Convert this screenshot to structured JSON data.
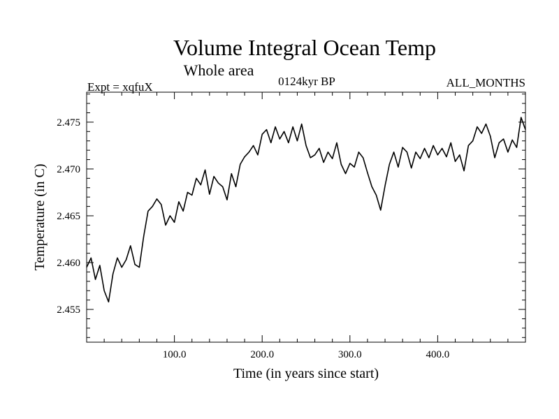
{
  "chart_data": {
    "type": "line",
    "title": "Volume Integral Ocean Temp",
    "subtitle": "Whole area",
    "experiment_label": "Expt = xqfuX",
    "period_label": "0124kyr BP",
    "months_label": "ALL_MONTHS",
    "xlabel": "Time (in years since start)",
    "ylabel": "Temperature (in C)",
    "xlim": [
      0,
      500
    ],
    "ylim": [
      2.4515,
      2.4782
    ],
    "x_ticks": [
      100,
      200,
      300,
      400
    ],
    "x_tick_labels": [
      "100.0",
      "200.0",
      "300.0",
      "400.0"
    ],
    "y_ticks": [
      2.455,
      2.46,
      2.465,
      2.47,
      2.475
    ],
    "y_tick_labels": [
      "2.455",
      "2.460",
      "2.465",
      "2.470",
      "2.475"
    ],
    "grid": false,
    "series": [
      {
        "name": "Volume integral ocean temperature",
        "color": "#000000",
        "x": [
          0,
          5,
          10,
          15,
          20,
          25,
          30,
          35,
          40,
          45,
          50,
          55,
          60,
          65,
          70,
          75,
          80,
          85,
          90,
          95,
          100,
          105,
          110,
          115,
          120,
          125,
          130,
          135,
          140,
          145,
          150,
          155,
          160,
          165,
          170,
          175,
          180,
          185,
          190,
          195,
          200,
          205,
          210,
          215,
          220,
          225,
          230,
          235,
          240,
          245,
          250,
          255,
          260,
          265,
          270,
          275,
          280,
          285,
          290,
          295,
          300,
          305,
          310,
          315,
          320,
          325,
          330,
          335,
          340,
          345,
          350,
          355,
          360,
          365,
          370,
          375,
          380,
          385,
          390,
          395,
          400,
          405,
          410,
          415,
          420,
          425,
          430,
          435,
          440,
          445,
          450,
          455,
          460,
          465,
          470,
          475,
          480,
          485,
          490,
          495,
          500
        ],
        "values": [
          2.4595,
          2.4605,
          2.4582,
          2.4597,
          2.457,
          2.4558,
          2.4588,
          2.4605,
          2.4595,
          2.4603,
          2.4618,
          2.4598,
          2.4595,
          2.4628,
          2.4655,
          2.466,
          2.4668,
          2.4662,
          2.464,
          2.465,
          2.4643,
          2.4665,
          2.4655,
          2.4675,
          2.4672,
          2.469,
          2.4683,
          2.4699,
          2.4673,
          2.4692,
          2.4685,
          2.4681,
          2.4667,
          2.4695,
          2.4681,
          2.4705,
          2.4713,
          2.4718,
          2.4725,
          2.4715,
          2.4737,
          2.4742,
          2.4728,
          2.4745,
          2.4732,
          2.474,
          2.4728,
          2.4745,
          2.473,
          2.4748,
          2.4725,
          2.4712,
          2.4715,
          2.4722,
          2.4707,
          2.4718,
          2.4711,
          2.4728,
          2.4705,
          2.4695,
          2.4706,
          2.4702,
          2.4718,
          2.4712,
          2.4696,
          2.4681,
          2.4672,
          2.4656,
          2.4682,
          2.4705,
          2.4718,
          2.4702,
          2.4723,
          2.4718,
          2.4701,
          2.4718,
          2.4711,
          2.4722,
          2.4712,
          2.4725,
          2.4715,
          2.4722,
          2.4713,
          2.4728,
          2.4708,
          2.4715,
          2.4698,
          2.4725,
          2.473,
          2.4745,
          2.4738,
          2.4748,
          2.4735,
          2.4712,
          2.4728,
          2.4732,
          2.4718,
          2.4731,
          2.4723,
          2.4755,
          2.4742
        ]
      }
    ]
  }
}
